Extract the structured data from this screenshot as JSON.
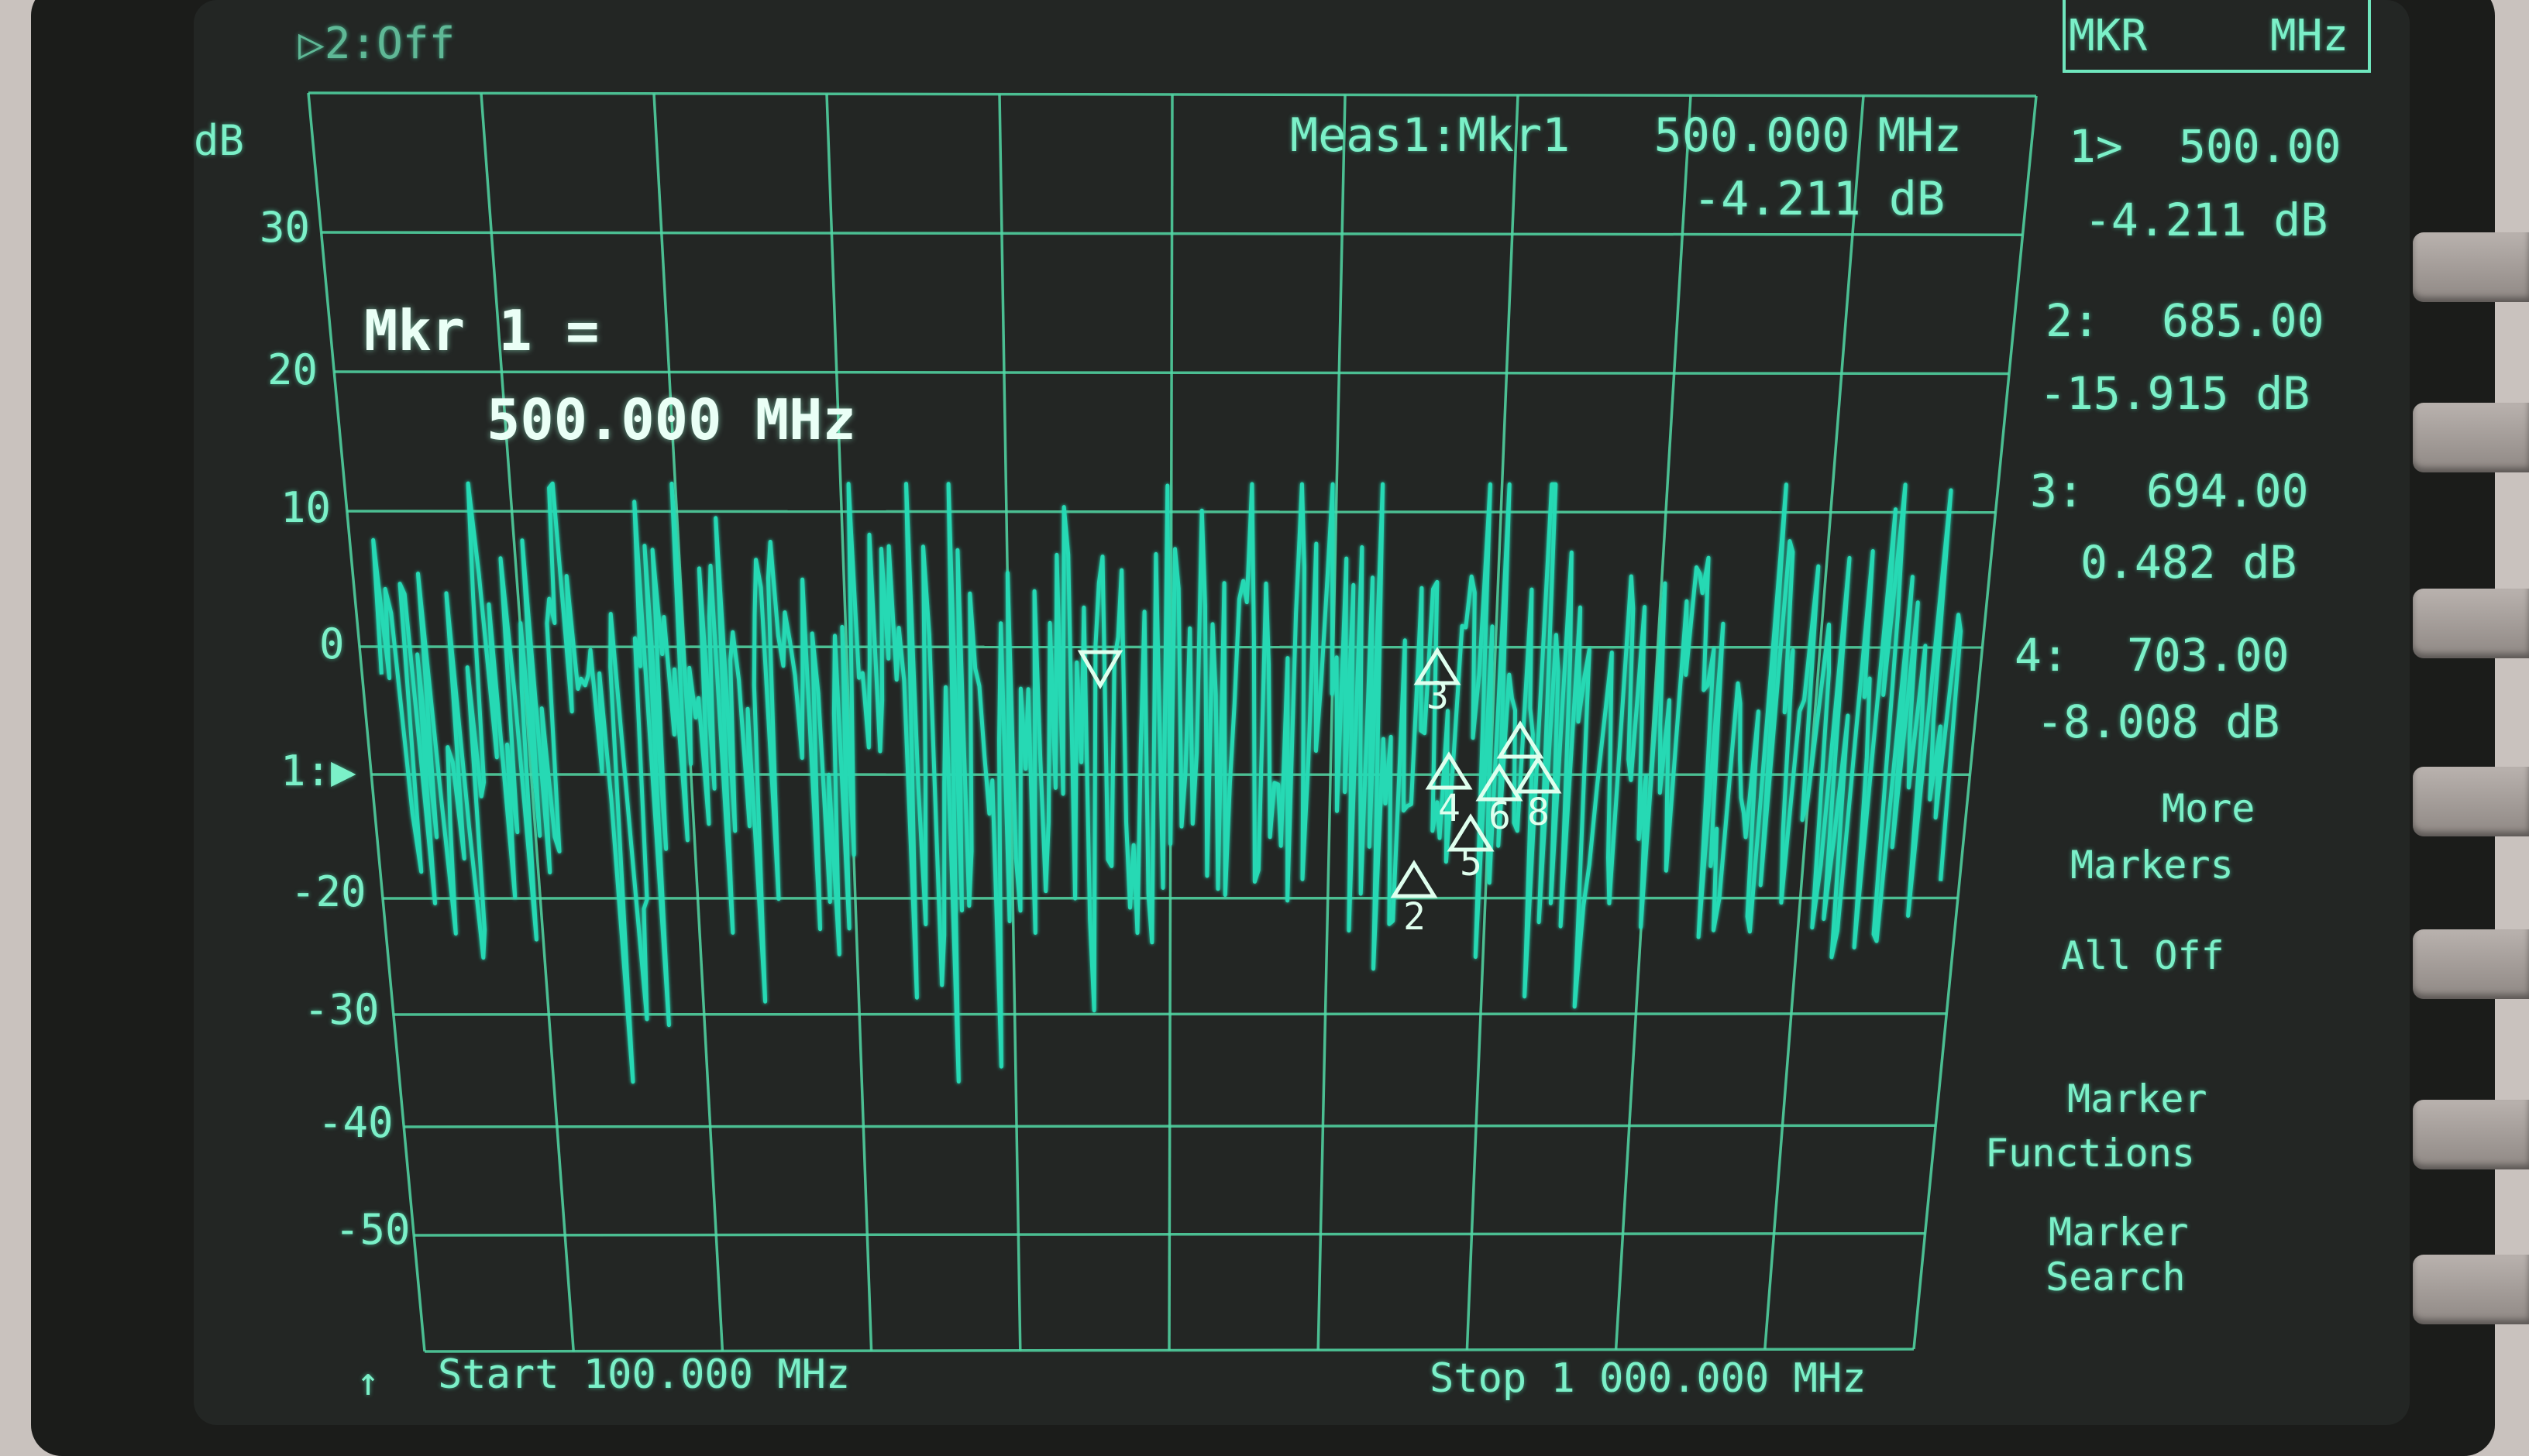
{
  "header": {
    "trace2": "▷2:Off",
    "box_title": "MKR",
    "box_unit": "MHz"
  },
  "plot": {
    "y_unit": "dB",
    "y_ticks": [
      "30",
      "20",
      "10",
      "0",
      "1:▶",
      "-20",
      "-30",
      "-40",
      "-50"
    ],
    "meas_line1": "Meas1:Mkr1   500.000 MHz",
    "meas_line2": "-4.211 dB",
    "marker_label1": "Mkr 1 =",
    "marker_label2": "500.000 MHz",
    "start": "Start 100.000 MHz",
    "stop": "Stop 1 000.000 MHz",
    "bottom_arrow": "↑"
  },
  "markers_panel": [
    {
      "id": "1>",
      "freq": "500.00",
      "val": "-4.211 dB"
    },
    {
      "id": "2:",
      "freq": "685.00",
      "val": "-15.915 dB"
    },
    {
      "id": "3:",
      "freq": "694.00",
      "val": "0.482 dB"
    },
    {
      "id": "4:",
      "freq": "703.00",
      "val": "-8.008 dB"
    }
  ],
  "softkeys": {
    "more1": "More",
    "more2": "Markers",
    "all_off": "All Off",
    "func1": "Marker",
    "func2": "Functions",
    "search1": "Marker",
    "search2": "Search"
  },
  "trace_markers": [
    "2",
    "3",
    "4",
    "5",
    "6",
    "8"
  ],
  "colors": {
    "trace": "#27d9b4",
    "grid": "#52d9a6",
    "text": "#7bf0c8",
    "screen": "#232624"
  },
  "chart_data": {
    "type": "line",
    "x_range_mhz": [
      100,
      1000
    ],
    "y_range_db": [
      -60,
      40
    ],
    "marker_1": {
      "x_mhz": 500,
      "y_db": -4.211
    },
    "marker_2": {
      "x_mhz": 685,
      "y_db": -15.915
    },
    "marker_3": {
      "x_mhz": 694,
      "y_db": 0.482
    },
    "marker_4": {
      "x_mhz": 703,
      "y_db": -8.008
    }
  }
}
